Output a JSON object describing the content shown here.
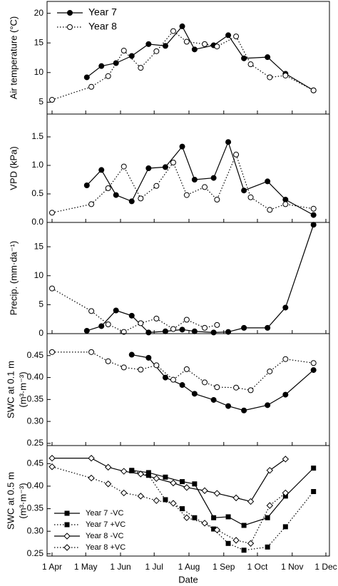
{
  "chart_data": [
    {
      "type": "line",
      "ylabel": [
        "Air temperature (°C)"
      ],
      "ylim": [
        3,
        22
      ],
      "yticks": [
        5,
        10,
        15,
        20
      ],
      "legend": "upper left",
      "series": [
        {
          "name": "Year 7",
          "color": "#000000",
          "marker": "circle",
          "filled": true,
          "linestyle": "solid",
          "x": [
            "2 May",
            "15 May",
            "28 May",
            "11 Jun",
            "26 Jun",
            "11 Jul",
            "26 Jul",
            "6 Aug",
            "23 Aug",
            "5 Sep",
            "19 Sep",
            "10 Oct",
            "26 Oct",
            "20 Nov"
          ],
          "values": [
            9.2,
            11.1,
            11.6,
            12.8,
            14.8,
            14.5,
            17.8,
            13.9,
            14.6,
            16.3,
            12.4,
            12.6,
            9.8,
            7.0
          ]
        },
        {
          "name": "Year 8",
          "color": "#000000",
          "marker": "circle",
          "filled": false,
          "linestyle": "dotted",
          "x": [
            "1 Apr",
            "6 May",
            "21 May",
            "4 Jun",
            "19 Jun",
            "3 Jul",
            "18 Jul",
            "30 Jul",
            "15 Aug",
            "26 Aug",
            "12 Sep",
            "25 Sep",
            "12 Oct",
            "26 Oct",
            "20 Nov"
          ],
          "values": [
            5.4,
            7.6,
            9.4,
            13.7,
            10.8,
            13.6,
            17.0,
            15.2,
            14.8,
            14.4,
            16.1,
            11.4,
            9.2,
            9.5,
            7.0
          ]
        }
      ]
    },
    {
      "type": "line",
      "ylabel": [
        "VPD (kPa)"
      ],
      "ylim": [
        0,
        1.9
      ],
      "yticks": [
        {
          "value": 0,
          "label": "0.0"
        },
        {
          "value": 0.5,
          "label": "0.5"
        },
        {
          "value": 1,
          "label": "1.0"
        },
        {
          "value": 1.5,
          "label": "1.5"
        }
      ],
      "series": [
        {
          "name": "Year 7",
          "color": "#000000",
          "marker": "circle",
          "filled": true,
          "linestyle": "solid",
          "x": [
            "2 May",
            "15 May",
            "28 May",
            "11 Jun",
            "26 Jun",
            "11 Jul",
            "26 Jul",
            "6 Aug",
            "23 Aug",
            "5 Sep",
            "19 Sep",
            "10 Oct",
            "26 Oct",
            "20 Nov"
          ],
          "values": [
            0.65,
            0.92,
            0.48,
            0.37,
            0.95,
            0.97,
            1.33,
            0.75,
            0.78,
            1.41,
            0.56,
            0.72,
            0.4,
            0.13
          ]
        },
        {
          "name": "Year 8",
          "color": "#000000",
          "marker": "circle",
          "filled": false,
          "linestyle": "dotted",
          "x": [
            "1 Apr",
            "6 May",
            "21 May",
            "4 Jun",
            "19 Jun",
            "3 Jul",
            "18 Jul",
            "30 Jul",
            "15 Aug",
            "26 Aug",
            "12 Sep",
            "25 Sep",
            "12 Oct",
            "26 Oct",
            "20 Nov"
          ],
          "values": [
            0.17,
            0.32,
            0.6,
            0.98,
            0.42,
            0.64,
            1.05,
            0.48,
            0.62,
            0.4,
            1.19,
            0.44,
            0.22,
            0.32,
            0.24
          ]
        }
      ]
    },
    {
      "type": "line",
      "ylabel": [
        "Precip. (mm·da⁻¹)"
      ],
      "ylim": [
        0,
        19.2
      ],
      "yticks": [
        0,
        5,
        10,
        15
      ],
      "series": [
        {
          "name": "Year 7",
          "color": "#000000",
          "marker": "circle",
          "filled": true,
          "linestyle": "solid",
          "x": [
            "2 May",
            "15 May",
            "28 May",
            "11 Jun",
            "26 Jun",
            "11 Jul",
            "26 Jul",
            "6 Aug",
            "23 Aug",
            "5 Sep",
            "19 Sep",
            "10 Oct",
            "26 Oct",
            "20 Nov"
          ],
          "values": [
            0.5,
            1.3,
            4.0,
            3.1,
            0.2,
            0.4,
            0.7,
            0.4,
            0.2,
            0.3,
            1.0,
            1.0,
            4.5,
            18.8
          ]
        },
        {
          "name": "Year 8",
          "color": "#000000",
          "marker": "circle",
          "filled": false,
          "linestyle": "dotted",
          "x": [
            "1 Apr",
            "6 May",
            "21 May",
            "4 Jun",
            "19 Jun",
            "3 Jul",
            "18 Jul",
            "30 Jul",
            "15 Aug",
            "26 Aug"
          ],
          "values": [
            7.8,
            3.9,
            1.6,
            0.3,
            1.8,
            2.6,
            0.8,
            2.4,
            1.0,
            1.5
          ]
        }
      ]
    },
    {
      "type": "line",
      "ylabel": [
        "SWC at 0.1 m",
        "(m³·m⁻³)"
      ],
      "ylim": [
        0.245,
        0.5
      ],
      "yticks": [
        {
          "value": 0.25,
          "label": "0.25"
        },
        {
          "value": 0.3,
          "label": "0.30"
        },
        {
          "value": 0.35,
          "label": "0.35"
        },
        {
          "value": 0.4,
          "label": "0.40"
        },
        {
          "value": 0.45,
          "label": "0.45"
        }
      ],
      "series": [
        {
          "name": "Year 7",
          "color": "#000000",
          "marker": "circle",
          "filled": true,
          "linestyle": "solid",
          "x": [
            "11 Jun",
            "26 Jun",
            "11 Jul",
            "26 Jul",
            "6 Aug",
            "23 Aug",
            "5 Sep",
            "19 Sep",
            "10 Oct",
            "26 Oct",
            "20 Nov"
          ],
          "values": [
            0.452,
            0.445,
            0.4,
            0.383,
            0.363,
            0.349,
            0.335,
            0.325,
            0.337,
            0.361,
            0.417
          ]
        },
        {
          "name": "Year 8",
          "color": "#000000",
          "marker": "circle",
          "filled": false,
          "linestyle": "dotted",
          "x": [
            "1 Apr",
            "6 May",
            "21 May",
            "4 Jun",
            "19 Jun",
            "3 Jul",
            "18 Jul",
            "30 Jul",
            "15 Aug",
            "26 Aug",
            "12 Sep",
            "25 Sep",
            "12 Oct",
            "26 Oct",
            "20 Nov"
          ],
          "values": [
            0.458,
            0.458,
            0.437,
            0.423,
            0.418,
            0.428,
            0.395,
            0.419,
            0.389,
            0.378,
            0.377,
            0.371,
            0.414,
            0.442,
            0.433
          ]
        }
      ]
    },
    {
      "type": "line",
      "ylabel": [
        "SWC at 0.5 m",
        "(m³·m⁻³)"
      ],
      "ylim": [
        0.245,
        0.49
      ],
      "yticks": [
        {
          "value": 0.25,
          "label": "0.25"
        },
        {
          "value": 0.3,
          "label": "0.30"
        },
        {
          "value": 0.35,
          "label": "0.35"
        },
        {
          "value": 0.4,
          "label": "0.40"
        },
        {
          "value": 0.45,
          "label": "0.45"
        }
      ],
      "legend": "lower left",
      "xlabel": "Date",
      "xlim": [
        "1 Apr",
        "1 Dec"
      ],
      "xticks": [
        "1 Apr",
        "1 May",
        "1 Jun",
        "1 Jul",
        "1 Aug",
        "1 Sep",
        "1 Oct",
        "1 Nov",
        "1 Dec"
      ],
      "series": [
        {
          "name": "Year 7 -VC",
          "color": "#000000",
          "marker": "square",
          "filled": true,
          "linestyle": "solid",
          "x": [
            "11 Jun",
            "26 Jun",
            "11 Jul",
            "26 Jul",
            "6 Aug",
            "23 Aug",
            "5 Sep",
            "19 Sep",
            "10 Oct",
            "26 Oct",
            "20 Nov"
          ],
          "values": [
            0.435,
            0.43,
            0.42,
            0.41,
            0.405,
            0.33,
            0.332,
            0.313,
            0.33,
            0.378,
            0.44
          ]
        },
        {
          "name": "Year 7 +VC",
          "color": "#000000",
          "marker": "square",
          "filled": true,
          "linestyle": "dotted",
          "x": [
            "11 Jun",
            "26 Jun",
            "11 Jul",
            "26 Jul",
            "6 Aug",
            "23 Aug",
            "5 Sep",
            "19 Sep",
            "10 Oct",
            "26 Oct",
            "20 Nov"
          ],
          "values": [
            0.434,
            0.424,
            0.37,
            0.35,
            0.33,
            0.305,
            0.273,
            0.258,
            0.265,
            0.31,
            0.388
          ]
        },
        {
          "name": "Year 8 -VC",
          "color": "#000000",
          "marker": "diamond",
          "filled": false,
          "linestyle": "solid",
          "x": [
            "1 Apr",
            "6 May",
            "21 May",
            "4 Jun",
            "19 Jun",
            "3 Jul",
            "18 Jul",
            "30 Jul",
            "15 Aug",
            "26 Aug",
            "12 Sep",
            "25 Sep",
            "12 Oct",
            "26 Oct"
          ],
          "values": [
            0.462,
            0.462,
            0.442,
            0.433,
            0.427,
            0.417,
            0.407,
            0.397,
            0.39,
            0.384,
            0.374,
            0.366,
            0.435,
            0.46
          ]
        },
        {
          "name": "Year 8 +VC",
          "color": "#000000",
          "marker": "diamond",
          "filled": false,
          "linestyle": "dotted",
          "x": [
            "1 Apr",
            "6 May",
            "21 May",
            "4 Jun",
            "19 Jun",
            "3 Jul",
            "18 Jul",
            "30 Jul",
            "15 Aug",
            "26 Aug",
            "12 Sep",
            "25 Sep",
            "12 Oct",
            "26 Oct"
          ],
          "values": [
            0.443,
            0.418,
            0.405,
            0.385,
            0.378,
            0.368,
            0.362,
            0.33,
            0.318,
            0.303,
            0.28,
            0.273,
            0.357,
            0.385
          ]
        }
      ]
    }
  ]
}
